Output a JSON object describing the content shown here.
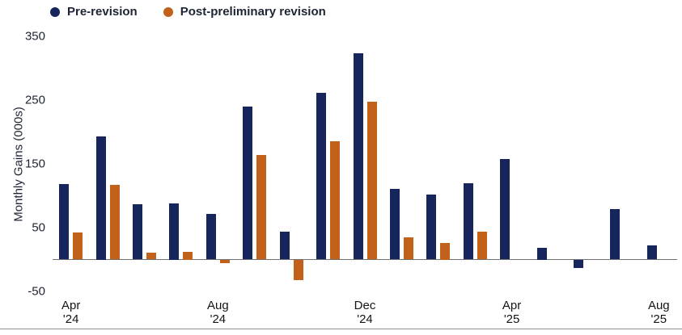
{
  "legend": {
    "items": [
      {
        "label": "Pre-revision",
        "color": "#16265c"
      },
      {
        "label": "Post-preliminary revision",
        "color": "#c2611a"
      }
    ]
  },
  "y_axis": {
    "title": "Monthly Gains (000s)",
    "ticks": [
      350,
      250,
      150,
      50,
      -50
    ]
  },
  "x_axis": {
    "labels": [
      {
        "month": "Apr",
        "year": "'24",
        "index": 0
      },
      {
        "month": "Aug",
        "year": "'24",
        "index": 4
      },
      {
        "month": "Dec",
        "year": "'24",
        "index": 8
      },
      {
        "month": "Apr",
        "year": "'25",
        "index": 12
      },
      {
        "month": "Aug",
        "year": "'25",
        "index": 16
      }
    ]
  },
  "chart_data": {
    "type": "bar",
    "title": "",
    "xlabel": "",
    "ylabel": "Monthly Gains (000s)",
    "ylim": [
      -50,
      350
    ],
    "grid": false,
    "legend_position": "top-left",
    "categories": [
      "Apr '24",
      "May '24",
      "Jun '24",
      "Jul '24",
      "Aug '24",
      "Sep '24",
      "Oct '24",
      "Nov '24",
      "Dec '24",
      "Jan '25",
      "Feb '25",
      "Mar '25",
      "Apr '25",
      "May '25",
      "Jun '25",
      "Jul '25",
      "Aug '25"
    ],
    "series": [
      {
        "name": "Pre-revision",
        "color": "#16265c",
        "values": [
          118,
          193,
          87,
          88,
          71,
          240,
          44,
          261,
          323,
          111,
          102,
          120,
          158,
          19,
          -13,
          79,
          22
        ]
      },
      {
        "name": "Post-preliminary revision",
        "color": "#c2611a",
        "values": [
          42,
          117,
          11,
          12,
          -5,
          164,
          -32,
          185,
          247,
          35,
          26,
          44,
          null,
          null,
          null,
          null,
          null
        ]
      }
    ]
  }
}
